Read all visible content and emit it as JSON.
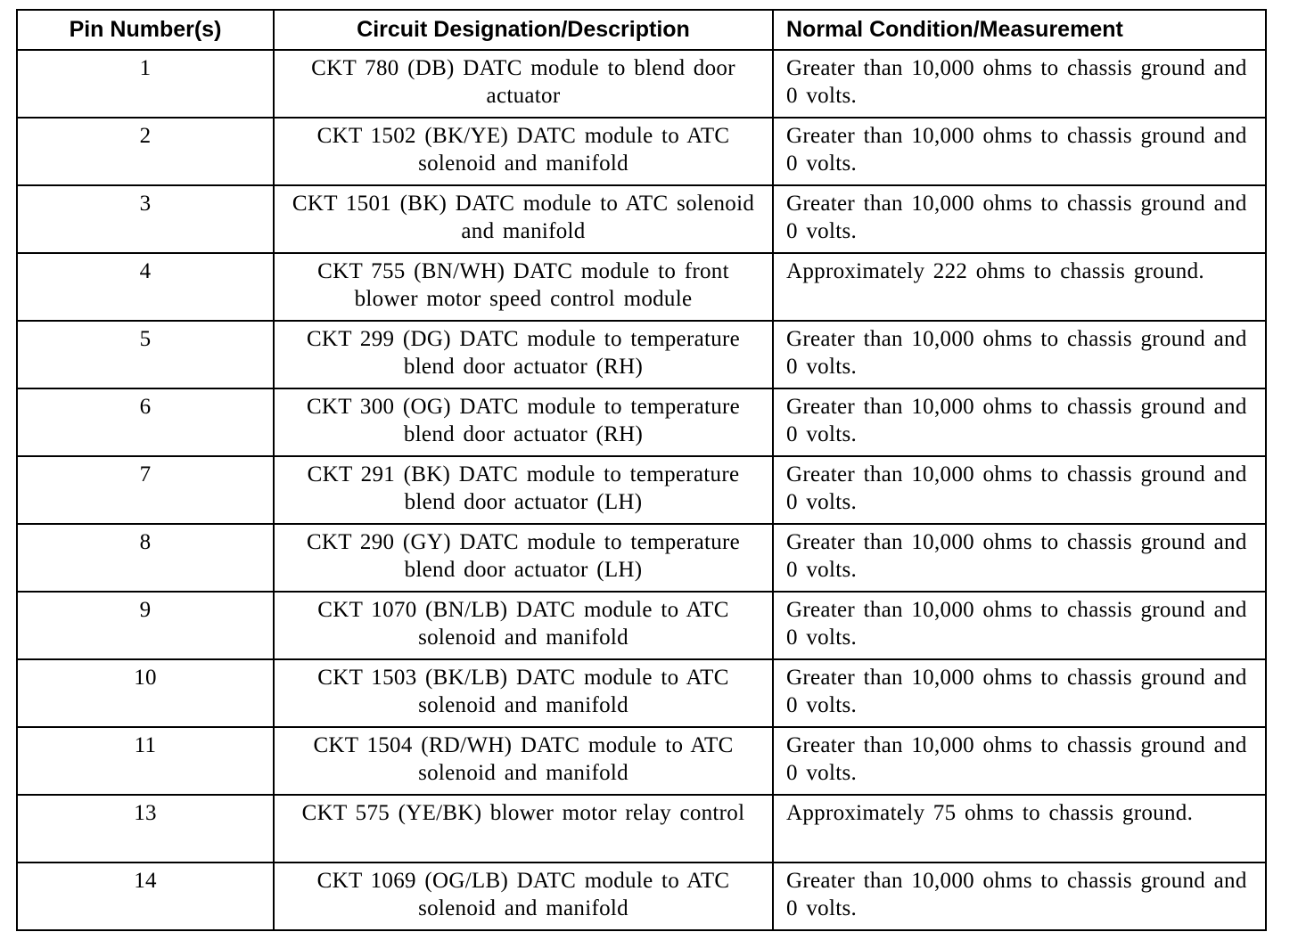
{
  "table": {
    "columns": [
      "Pin Number(s)",
      "Circuit Designation/Description",
      "Normal Condition/Measurement"
    ],
    "rows": [
      [
        "1",
        "CKT 780 (DB) DATC module to blend door actuator",
        "Greater than 10,000 ohms to chassis ground and 0 volts."
      ],
      [
        "2",
        "CKT 1502 (BK/YE) DATC module to ATC solenoid and manifold",
        "Greater than 10,000 ohms to chassis ground and 0 volts."
      ],
      [
        "3",
        "CKT 1501 (BK) DATC module to ATC solenoid and manifold",
        "Greater than 10,000 ohms to chassis ground and 0 volts."
      ],
      [
        "4",
        "CKT 755 (BN/WH) DATC module to front blower motor speed control module",
        "Approximately 222 ohms to chassis ground."
      ],
      [
        "5",
        "CKT 299 (DG) DATC module to temperature blend door actuator (RH)",
        "Greater than 10,000 ohms to chassis ground and 0 volts."
      ],
      [
        "6",
        "CKT 300 (OG) DATC module to temperature blend door actuator (RH)",
        "Greater than 10,000 ohms to chassis ground and 0 volts."
      ],
      [
        "7",
        "CKT 291 (BK) DATC module to temperature blend door actuator (LH)",
        "Greater than 10,000 ohms to chassis ground and 0 volts."
      ],
      [
        "8",
        "CKT 290 (GY) DATC module to temperature blend door actuator (LH)",
        "Greater than 10,000 ohms to chassis ground and 0 volts."
      ],
      [
        "9",
        "CKT 1070 (BN/LB) DATC module to ATC solenoid and manifold",
        "Greater than 10,000 ohms to chassis ground and 0 volts."
      ],
      [
        "10",
        "CKT 1503 (BK/LB) DATC module to ATC solenoid and manifold",
        "Greater than 10,000 ohms to chassis ground and 0 volts."
      ],
      [
        "11",
        "CKT 1504 (RD/WH) DATC module to ATC solenoid and manifold",
        "Greater than 10,000 ohms to chassis ground and 0 volts."
      ],
      [
        "13",
        "CKT 575 (YE/BK) blower motor relay control",
        "Approximately 75 ohms to chassis ground."
      ],
      [
        "14",
        "CKT 1069 (OG/LB) DATC module to ATC solenoid and manifold",
        "Greater than 10,000 ohms to chassis ground and 0 volts."
      ]
    ]
  }
}
